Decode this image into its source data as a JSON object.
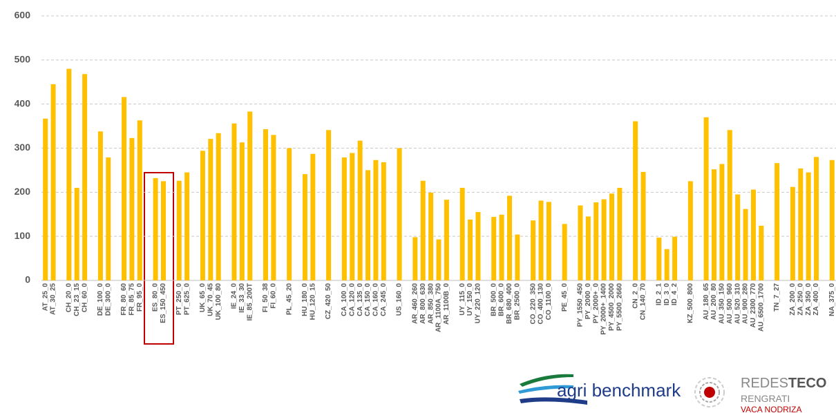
{
  "chart_data": {
    "type": "bar",
    "color": "#ffc000",
    "grid": true,
    "ylim": [
      0,
      600
    ],
    "yticks": [
      0,
      100,
      200,
      300,
      400,
      500,
      600
    ],
    "categories": [
      "AT_25_0",
      "AT_30_25",
      null,
      "CH_20_0",
      "CH_23_15",
      "CH_60_0",
      null,
      "DE_100_0",
      "DE_300_0",
      null,
      "FR_80_60",
      "FR_85_75",
      "FR_95_0",
      null,
      "ES_80_0",
      "ES_150_450",
      null,
      "PT_250_0",
      "PT_625_0",
      null,
      "UK_65_0",
      "UK_70_45",
      "UK_100_80",
      null,
      "IE_24_0",
      "IE_33_30",
      "IE_85_200T",
      null,
      "FI_50_38",
      "FI_60_0",
      null,
      "PL_45_20",
      null,
      "HU_180_0",
      "HU_120_15",
      null,
      "CZ_420_50",
      null,
      "CA_100_0",
      "CA_120_0",
      "CA_135_0",
      "CA_150_0",
      "CA_160_0",
      "CA_245_0",
      null,
      "US_160_0",
      null,
      "AR_460_260",
      "AR_800_630",
      "AR_850_380",
      "AR_1100A_750",
      "AR_1100B_0",
      null,
      "UY_115_0",
      "UY_150_0",
      "UY_220_120",
      null,
      "BR_500_0",
      "BR_600_0",
      "BR_680_400",
      "BR_2500_0",
      null,
      "CO_220_350",
      "CO_400_130",
      "CO_1100_0",
      null,
      "PE_45_0",
      null,
      "PY_1550_450",
      "PY_2000_0",
      "PY_2000+_0",
      "PY_2000+_1400",
      "PY_4500_2000",
      "PY_5500_2660",
      null,
      "CN_2_0",
      "CN_140_70",
      null,
      "ID_2_1",
      "ID_3_0",
      "ID_4_2",
      null,
      "KZ_500_800",
      null,
      "AU_180_65",
      "AU_200_80",
      "AU_350_150",
      "AU_500_960",
      "AU_520_310",
      "AU_900_280",
      "AU_2300_770",
      "AU_6500_1700",
      null,
      "TN_7_27",
      null,
      "ZA_200_0",
      "ZA_250_0",
      "ZA_350_0",
      "ZA_400_0",
      null,
      "NA_375_0"
    ],
    "values": [
      367,
      445,
      null,
      480,
      210,
      468,
      null,
      338,
      279,
      null,
      416,
      323,
      363,
      null,
      232,
      225,
      null,
      226,
      245,
      null,
      294,
      321,
      334,
      null,
      356,
      313,
      383,
      null,
      343,
      330,
      null,
      300,
      null,
      241,
      287,
      null,
      341,
      null,
      279,
      289,
      317,
      250,
      273,
      268,
      null,
      300,
      null,
      98,
      226,
      199,
      93,
      183,
      null,
      210,
      138,
      155,
      null,
      144,
      149,
      192,
      104,
      null,
      136,
      181,
      178,
      null,
      128,
      null,
      170,
      145,
      177,
      184,
      197,
      210,
      null,
      361,
      246,
      null,
      97,
      71,
      99,
      null,
      225,
      null,
      370,
      252,
      264,
      341,
      195,
      162,
      206,
      124,
      null,
      266,
      null,
      212,
      254,
      245,
      280,
      null,
      273
    ]
  },
  "logo": {
    "brand": "agri benchmark",
    "name_light": "REDES",
    "name_bold": "TECO",
    "line2": "RENGRATI",
    "line3": "VACA NODRIZA"
  }
}
